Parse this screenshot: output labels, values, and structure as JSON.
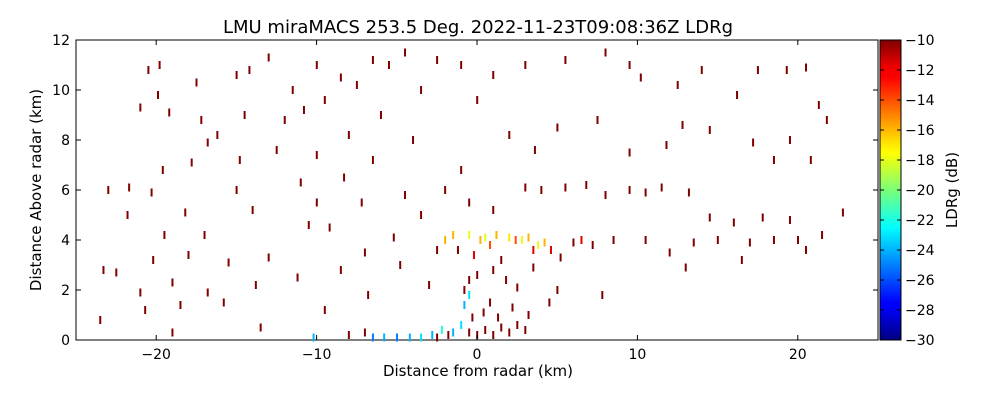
{
  "chart_data": {
    "type": "scatter",
    "title": "LMU miraMACS 253.5 Deg. 2022-11-23T09:08:36Z  LDRg",
    "xlabel": "Distance from radar (km)",
    "ylabel": "Distance Above radar  (km)",
    "xlim": [
      -25,
      25
    ],
    "ylim": [
      0,
      12
    ],
    "x_ticks": [
      -20,
      -10,
      0,
      10,
      20
    ],
    "x_tick_labels": [
      "−20",
      "−10",
      "0",
      "10",
      "20"
    ],
    "y_ticks": [
      0,
      2,
      4,
      6,
      8,
      10,
      12
    ],
    "y_tick_labels": [
      "0",
      "2",
      "4",
      "6",
      "8",
      "10",
      "12"
    ],
    "grid": false,
    "colorbar": {
      "label": "LDRg (dB)",
      "range": [
        -30,
        -10
      ],
      "ticks": [
        -30,
        -28,
        -26,
        -24,
        -22,
        -20,
        -18,
        -16,
        -14,
        -12,
        -10
      ],
      "tick_labels": [
        "−30",
        "−28",
        "−26",
        "−24",
        "−22",
        "−20",
        "−18",
        "−16",
        "−14",
        "−12",
        "−10"
      ],
      "colormap": "jet"
    },
    "points": [
      [
        -23.5,
        0.8,
        -10
      ],
      [
        -23.3,
        2.8,
        -10
      ],
      [
        -22.5,
        2.7,
        -10
      ],
      [
        -23.0,
        6.0,
        -10
      ],
      [
        -21.8,
        5.0,
        -10
      ],
      [
        -21.7,
        6.1,
        -10
      ],
      [
        -21.0,
        1.9,
        -10
      ],
      [
        -20.7,
        1.2,
        -10
      ],
      [
        -20.2,
        3.2,
        -10
      ],
      [
        -20.3,
        5.9,
        -10
      ],
      [
        -21.0,
        9.3,
        -10
      ],
      [
        -20.5,
        10.8,
        -10
      ],
      [
        -19.8,
        11.0,
        -10
      ],
      [
        -19.9,
        9.8,
        -10
      ],
      [
        -19.5,
        4.2,
        -10
      ],
      [
        -19.6,
        6.8,
        -10
      ],
      [
        -19.0,
        2.3,
        -10
      ],
      [
        -19.2,
        9.1,
        -10
      ],
      [
        -19.0,
        0.3,
        -10
      ],
      [
        -18.5,
        1.4,
        -10
      ],
      [
        -18.0,
        3.4,
        -10
      ],
      [
        -18.2,
        5.1,
        -10
      ],
      [
        -17.8,
        7.1,
        -10
      ],
      [
        -17.2,
        8.8,
        -10
      ],
      [
        -17.0,
        4.2,
        -10
      ],
      [
        -16.8,
        1.9,
        -10
      ],
      [
        -16.8,
        7.9,
        -10
      ],
      [
        -16.2,
        8.2,
        -10
      ],
      [
        -15.8,
        1.5,
        -10
      ],
      [
        -15.5,
        3.1,
        -10
      ],
      [
        -15.0,
        6.0,
        -10
      ],
      [
        -14.8,
        7.2,
        -10
      ],
      [
        -14.5,
        9.0,
        -10
      ],
      [
        -14.2,
        10.8,
        -10
      ],
      [
        -14.0,
        5.2,
        -10
      ],
      [
        -13.8,
        2.2,
        -10
      ],
      [
        -13.5,
        0.5,
        -10
      ],
      [
        -13.0,
        3.3,
        -10
      ],
      [
        -12.5,
        7.6,
        -10
      ],
      [
        -12.0,
        8.8,
        -10
      ],
      [
        -11.5,
        10.0,
        -10
      ],
      [
        -11.0,
        6.3,
        -10
      ],
      [
        -11.2,
        2.5,
        -10
      ],
      [
        -10.8,
        9.2,
        -10
      ],
      [
        -10.5,
        4.6,
        -10
      ],
      [
        -10.0,
        5.5,
        -10
      ],
      [
        -10.0,
        7.4,
        -10
      ],
      [
        -9.5,
        9.6,
        -10
      ],
      [
        -9.5,
        1.2,
        -10
      ],
      [
        -9.2,
        4.5,
        -10
      ],
      [
        -8.5,
        2.8,
        -10
      ],
      [
        -8.3,
        6.5,
        -10
      ],
      [
        -8.0,
        8.2,
        -10
      ],
      [
        -7.5,
        10.2,
        -10
      ],
      [
        -7.0,
        3.5,
        -10
      ],
      [
        -7.2,
        5.5,
        -10
      ],
      [
        -6.8,
        1.8,
        -10
      ],
      [
        -6.5,
        7.2,
        -10
      ],
      [
        -6.0,
        9.0,
        -10
      ],
      [
        -5.5,
        11.0,
        -10
      ],
      [
        -5.2,
        4.1,
        -10
      ],
      [
        -4.8,
        3.0,
        -10
      ],
      [
        -4.5,
        5.8,
        -10
      ],
      [
        -4.0,
        8.0,
        -10
      ],
      [
        -3.5,
        10.0,
        -10
      ],
      [
        -3.0,
        2.2,
        -10
      ],
      [
        -2.5,
        3.6,
        -10
      ],
      [
        -2.0,
        4.0,
        -16
      ],
      [
        -1.5,
        4.2,
        -16
      ],
      [
        -1.2,
        3.6,
        -10
      ],
      [
        -1.0,
        6.8,
        -10
      ],
      [
        -0.8,
        2.0,
        -10
      ],
      [
        -0.5,
        4.2,
        -18
      ],
      [
        -0.2,
        3.4,
        -12
      ],
      [
        0.0,
        9.6,
        -10
      ],
      [
        0.2,
        4.0,
        -16
      ],
      [
        0.5,
        4.1,
        -18
      ],
      [
        0.8,
        3.8,
        -14
      ],
      [
        1.2,
        4.2,
        -16
      ],
      [
        1.5,
        3.2,
        -10
      ],
      [
        1.8,
        2.4,
        -10
      ],
      [
        2.0,
        4.1,
        -17
      ],
      [
        2.4,
        4.0,
        -14
      ],
      [
        2.8,
        4.0,
        -18
      ],
      [
        3.2,
        4.1,
        -16
      ],
      [
        3.5,
        3.6,
        -12
      ],
      [
        3.8,
        3.8,
        -18
      ],
      [
        4.2,
        3.9,
        -16
      ],
      [
        4.6,
        3.6,
        -12
      ],
      [
        5.2,
        3.3,
        -10
      ],
      [
        6.0,
        3.9,
        -10
      ],
      [
        6.5,
        4.0,
        -12
      ],
      [
        7.2,
        3.8,
        -10
      ],
      [
        8.5,
        4.0,
        -10
      ],
      [
        5.0,
        2.0,
        -10
      ],
      [
        7.8,
        1.8,
        -10
      ],
      [
        3.0,
        6.1,
        -10
      ],
      [
        4.0,
        6.0,
        -10
      ],
      [
        5.5,
        6.1,
        -10
      ],
      [
        6.8,
        6.2,
        -10
      ],
      [
        8.0,
        5.8,
        -10
      ],
      [
        9.5,
        6.0,
        -10
      ],
      [
        10.5,
        5.9,
        -10
      ],
      [
        11.5,
        6.1,
        -10
      ],
      [
        13.2,
        5.9,
        -10
      ],
      [
        14.5,
        4.9,
        -10
      ],
      [
        16.0,
        4.7,
        -10
      ],
      [
        17.8,
        4.9,
        -10
      ],
      [
        19.5,
        4.8,
        -10
      ],
      [
        21.5,
        4.2,
        -10
      ],
      [
        22.8,
        5.1,
        -10
      ],
      [
        2.0,
        8.2,
        -10
      ],
      [
        3.6,
        7.6,
        -10
      ],
      [
        5.0,
        8.5,
        -10
      ],
      [
        7.5,
        8.8,
        -10
      ],
      [
        9.5,
        7.5,
        -10
      ],
      [
        11.8,
        7.8,
        -10
      ],
      [
        12.8,
        8.6,
        -10
      ],
      [
        14.5,
        8.4,
        -10
      ],
      [
        16.2,
        9.8,
        -10
      ],
      [
        17.2,
        7.9,
        -10
      ],
      [
        18.5,
        7.2,
        -10
      ],
      [
        19.5,
        8.0,
        -10
      ],
      [
        20.8,
        7.2,
        -10
      ],
      [
        17.5,
        10.8,
        -10
      ],
      [
        19.3,
        10.8,
        -10
      ],
      [
        20.5,
        10.9,
        -10
      ],
      [
        21.3,
        9.4,
        -10
      ],
      [
        21.8,
        8.8,
        -10
      ],
      [
        10.2,
        10.5,
        -10
      ],
      [
        12.5,
        10.2,
        -10
      ],
      [
        14.0,
        10.8,
        -10
      ],
      [
        8.0,
        11.5,
        -10
      ],
      [
        9.5,
        11.0,
        -10
      ],
      [
        5.5,
        11.2,
        -10
      ],
      [
        3.0,
        11.0,
        -10
      ],
      [
        1.0,
        10.6,
        -10
      ],
      [
        -1.0,
        11.0,
        -10
      ],
      [
        -2.5,
        11.2,
        -10
      ],
      [
        -4.5,
        11.5,
        -10
      ],
      [
        -6.5,
        11.2,
        -10
      ],
      [
        -8.5,
        10.5,
        -10
      ],
      [
        -10.0,
        11.0,
        -10
      ],
      [
        -13.0,
        11.3,
        -10
      ],
      [
        -15.0,
        10.6,
        -10
      ],
      [
        -17.5,
        10.3,
        -10
      ],
      [
        -2.0,
        6.0,
        -10
      ],
      [
        -0.5,
        5.5,
        -10
      ],
      [
        1.0,
        5.2,
        -10
      ],
      [
        -3.5,
        5.0,
        -10
      ],
      [
        10.5,
        4.0,
        -10
      ],
      [
        12.0,
        3.5,
        -10
      ],
      [
        13.5,
        3.9,
        -10
      ],
      [
        15.0,
        4.0,
        -10
      ],
      [
        17.0,
        3.9,
        -10
      ],
      [
        13.0,
        2.9,
        -10
      ],
      [
        16.5,
        3.2,
        -10
      ],
      [
        18.5,
        4.0,
        -10
      ],
      [
        20.0,
        4.0,
        -10
      ],
      [
        20.5,
        3.6,
        -10
      ],
      [
        -6.5,
        0.1,
        -25
      ],
      [
        -5.8,
        0.1,
        -24
      ],
      [
        -5.0,
        0.1,
        -25
      ],
      [
        -4.2,
        0.1,
        -24
      ],
      [
        -3.5,
        0.1,
        -23
      ],
      [
        -2.8,
        0.2,
        -24
      ],
      [
        -2.2,
        0.4,
        -22
      ],
      [
        -1.5,
        0.3,
        -24
      ],
      [
        -1.0,
        0.6,
        -23
      ],
      [
        -0.8,
        1.4,
        -24
      ],
      [
        -0.5,
        1.8,
        -23
      ],
      [
        -10.2,
        0.1,
        -24
      ],
      [
        -8.0,
        0.2,
        -10
      ],
      [
        -7.0,
        0.3,
        -10
      ],
      [
        -2.5,
        0.1,
        -10
      ],
      [
        -1.8,
        0.2,
        -10
      ],
      [
        -0.5,
        0.3,
        -10
      ],
      [
        0.0,
        0.2,
        -10
      ],
      [
        0.5,
        0.4,
        -10
      ],
      [
        1.0,
        0.2,
        -10
      ],
      [
        1.5,
        0.5,
        -10
      ],
      [
        2.0,
        0.3,
        -10
      ],
      [
        2.5,
        0.6,
        -10
      ],
      [
        3.0,
        0.4,
        -10
      ],
      [
        -0.3,
        0.9,
        -10
      ],
      [
        0.4,
        1.1,
        -10
      ],
      [
        0.8,
        1.5,
        -10
      ],
      [
        1.3,
        0.9,
        -10
      ],
      [
        2.2,
        1.3,
        -10
      ],
      [
        3.2,
        1.0,
        -10
      ],
      [
        0.0,
        2.6,
        -10
      ],
      [
        -0.5,
        2.4,
        -10
      ],
      [
        1.0,
        2.8,
        -10
      ],
      [
        2.5,
        2.1,
        -10
      ],
      [
        3.5,
        2.9,
        -10
      ],
      [
        4.5,
        1.5,
        -10
      ]
    ]
  }
}
